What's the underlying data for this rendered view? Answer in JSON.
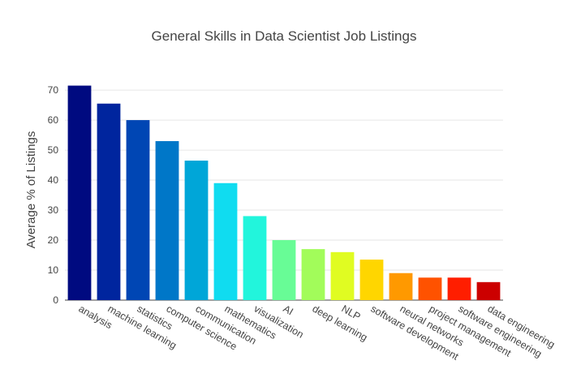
{
  "chart_data": {
    "type": "bar",
    "title": "General Skills in Data Scientist Job Listings",
    "xlabel": "",
    "ylabel": "Average % of Listings",
    "ylim": [
      0,
      73
    ],
    "yticks": [
      0,
      10,
      20,
      30,
      40,
      50,
      60,
      70
    ],
    "grid": true,
    "categories": [
      "analysis",
      "machine learning",
      "statistics",
      "computer science",
      "communication",
      "mathematics",
      "visualization",
      "AI",
      "deep learning",
      "NLP",
      "software development",
      "neural networks",
      "project management",
      "software engineering",
      "data engineering"
    ],
    "values": [
      71.5,
      65.5,
      60,
      53,
      46.5,
      39,
      28,
      20,
      17,
      16,
      13.5,
      9,
      7.5,
      7.5,
      6
    ],
    "colors": [
      "#000a80",
      "#00259e",
      "#0046b4",
      "#0077c8",
      "#00a6d8",
      "#10dcf0",
      "#22f5dc",
      "#68fc96",
      "#a2fc5a",
      "#e0fc22",
      "#ffd600",
      "#ff9900",
      "#ff5200",
      "#ff1e00",
      "#cc0000"
    ]
  }
}
